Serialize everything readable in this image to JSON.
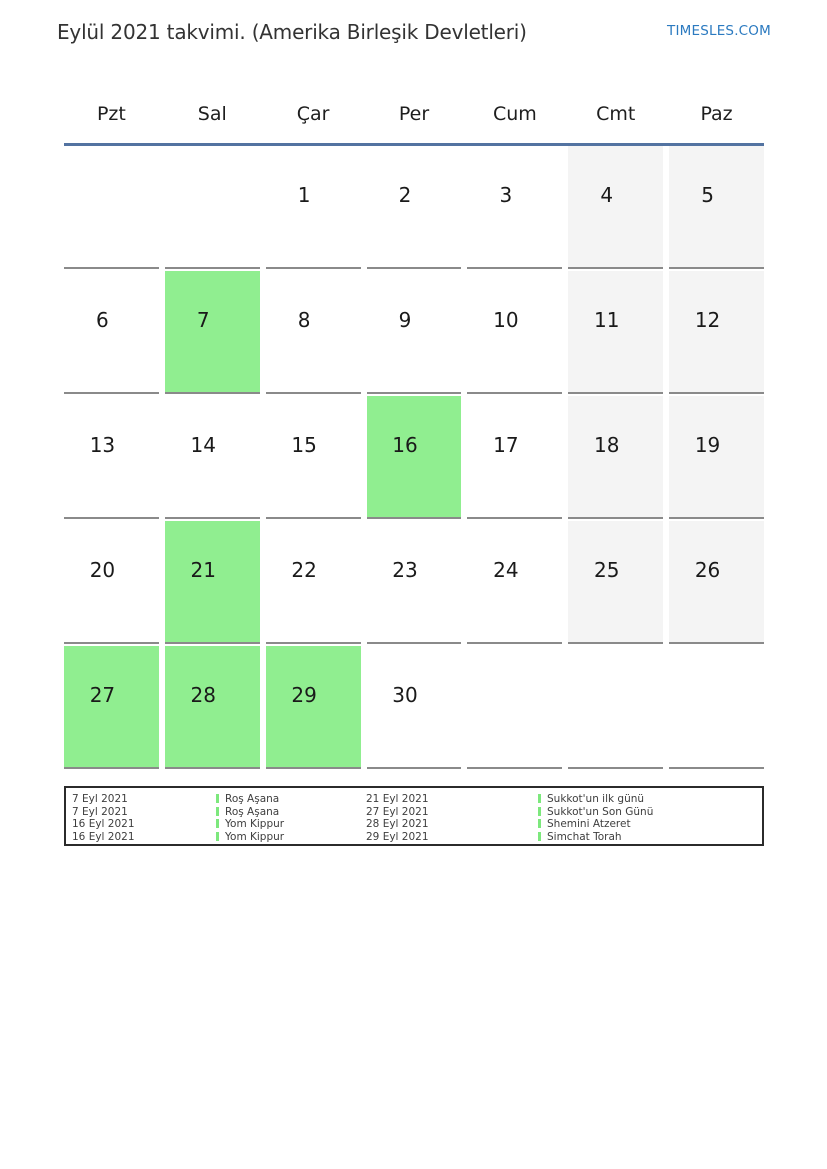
{
  "page": {
    "title": "Eylül 2021 takvimi. (Amerika Birleşik Devletleri)",
    "brand": "TIMESLES.COM"
  },
  "colors": {
    "highlight_green": "#90ee90",
    "weekend_gray": "#f4f4f4",
    "header_line_blue": "#5373a1",
    "cell_line_gray": "#8a8a8a",
    "brand_blue": "#2b7ac0",
    "legend_bar_green": "#7de87d"
  },
  "calendar": {
    "weekdays": [
      "Pzt",
      "Sal",
      "Çar",
      "Per",
      "Cum",
      "Cmt",
      "Paz"
    ],
    "weeks": [
      [
        {
          "day": ""
        },
        {
          "day": ""
        },
        {
          "day": "1"
        },
        {
          "day": "2"
        },
        {
          "day": "3"
        },
        {
          "day": "4",
          "weekend": true
        },
        {
          "day": "5",
          "weekend": true
        }
      ],
      [
        {
          "day": "6"
        },
        {
          "day": "7",
          "highlight": true
        },
        {
          "day": "8"
        },
        {
          "day": "9"
        },
        {
          "day": "10"
        },
        {
          "day": "11",
          "weekend": true
        },
        {
          "day": "12",
          "weekend": true
        }
      ],
      [
        {
          "day": "13"
        },
        {
          "day": "14"
        },
        {
          "day": "15"
        },
        {
          "day": "16",
          "highlight": true
        },
        {
          "day": "17"
        },
        {
          "day": "18",
          "weekend": true
        },
        {
          "day": "19",
          "weekend": true
        }
      ],
      [
        {
          "day": "20"
        },
        {
          "day": "21",
          "highlight": true
        },
        {
          "day": "22"
        },
        {
          "day": "23"
        },
        {
          "day": "24"
        },
        {
          "day": "25",
          "weekend": true
        },
        {
          "day": "26",
          "weekend": true
        }
      ],
      [
        {
          "day": "27",
          "highlight": true
        },
        {
          "day": "28",
          "highlight": true
        },
        {
          "day": "29",
          "highlight": true
        },
        {
          "day": "30"
        },
        {
          "day": ""
        },
        {
          "day": ""
        },
        {
          "day": ""
        }
      ]
    ]
  },
  "legend": {
    "rows": [
      {
        "date1": "7 Eyl 2021",
        "event1": "Roş Aşana",
        "date2": "21 Eyl 2021",
        "event2": "Sukkot'un ilk günü"
      },
      {
        "date1": "7 Eyl 2021",
        "event1": "Roş Aşana",
        "date2": "27 Eyl 2021",
        "event2": "Sukkot'un Son Günü"
      },
      {
        "date1": "16 Eyl 2021",
        "event1": "Yom Kippur",
        "date2": "28 Eyl 2021",
        "event2": "Shemini Atzeret"
      },
      {
        "date1": "16 Eyl 2021",
        "event1": "Yom Kippur",
        "date2": "29 Eyl 2021",
        "event2": "Simchat Torah"
      }
    ]
  }
}
